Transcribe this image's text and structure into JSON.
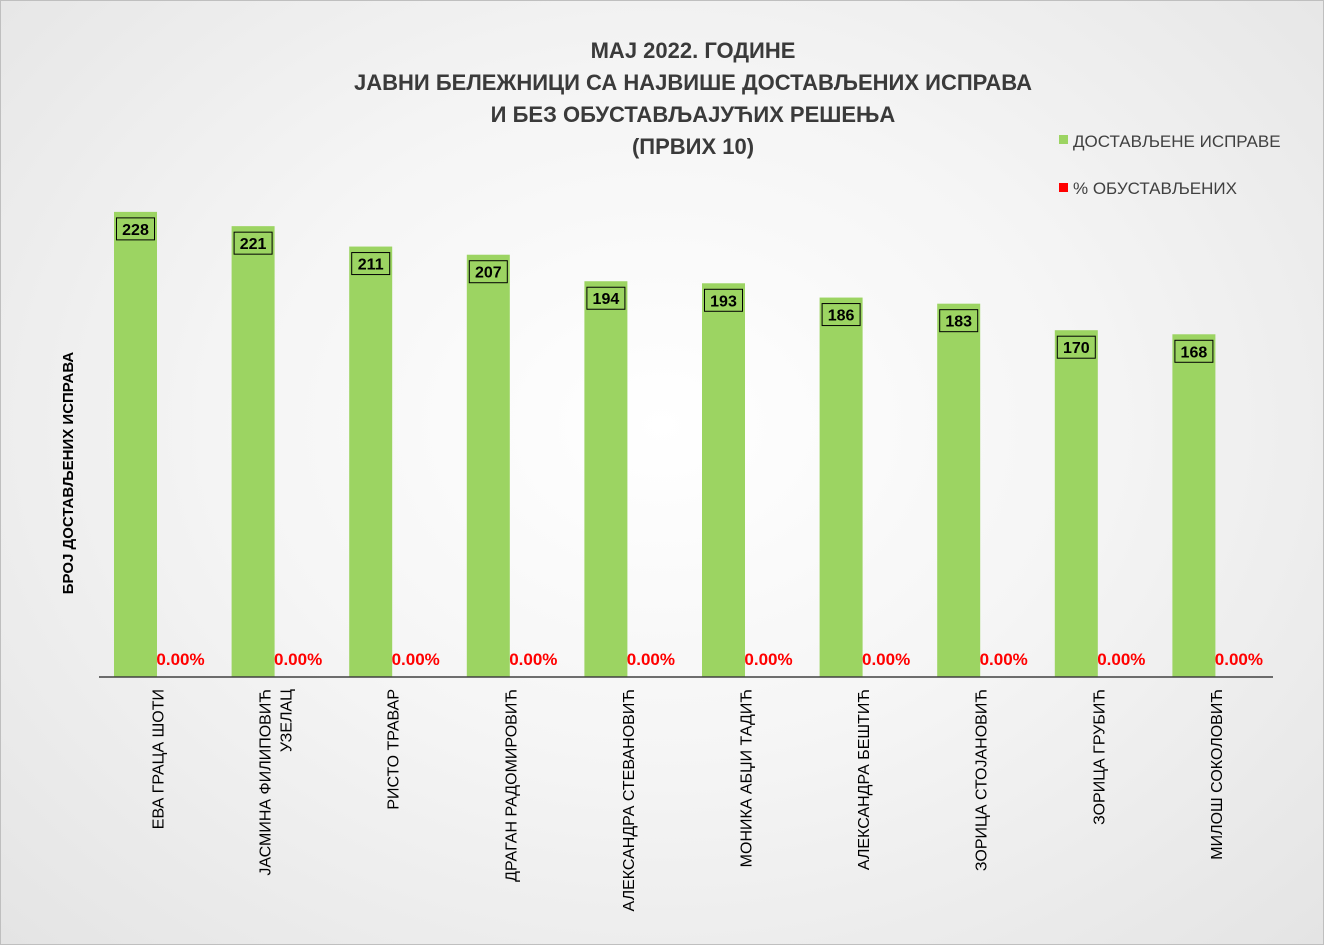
{
  "chart_data": {
    "type": "bar",
    "title_lines": [
      "МАЈ 2022. ГОДИНЕ",
      "ЈАВНИ БЕЛЕЖНИЦИ СА НАЈВИШЕ ДОСТАВЉЕНИХ ИСПРАВА",
      "И БЕЗ ОБУСТАВЉАЈУЋИХ РЕШЕЊА",
      "(ПРВИХ 10)"
    ],
    "ylabel": "БРОЈ ДОСТАВЉЕНИХ ИСПРАВА",
    "xlabel": "",
    "ylim": [
      0,
      270
    ],
    "grid": false,
    "legend_position": "top-right",
    "categories": [
      [
        "ЕВА ГРАЦА ШОТИ"
      ],
      [
        "ЈАСМИНА ФИЛИПОВИЋ",
        "УЗЕЛАЦ"
      ],
      [
        "РИСТО ТРАВАР"
      ],
      [
        "ДРАГАН РАДОМИРОВИЋ"
      ],
      [
        "АЛЕКСАНДРА СТЕВАНОВИЋ"
      ],
      [
        "МОНИКА АБЏИ ТАДИЋ"
      ],
      [
        "АЛЕКСАНДРА БЕШТИЋ"
      ],
      [
        "ЗОРИЦА СТОЈАНОВИЋ"
      ],
      [
        "ЗОРИЦА ГРУБИЋ"
      ],
      [
        "МИЛОШ СОКОЛОВИЋ"
      ]
    ],
    "series": [
      {
        "name": "ДОСТАВЉЕНЕ ИСПРАВЕ",
        "color": "#9cd462",
        "values": [
          228,
          221,
          211,
          207,
          194,
          193,
          186,
          183,
          170,
          168
        ],
        "labels": [
          "228",
          "221",
          "211",
          "207",
          "194",
          "193",
          "186",
          "183",
          "170",
          "168"
        ]
      },
      {
        "name": "% ОБУСТАВЉЕНИХ",
        "color": "#ff0000",
        "values": [
          0,
          0,
          0,
          0,
          0,
          0,
          0,
          0,
          0,
          0
        ],
        "labels": [
          "0.00%",
          "0.00%",
          "0.00%",
          "0.00%",
          "0.00%",
          "0.00%",
          "0.00%",
          "0.00%",
          "0.00%",
          "0.00%"
        ]
      }
    ]
  }
}
